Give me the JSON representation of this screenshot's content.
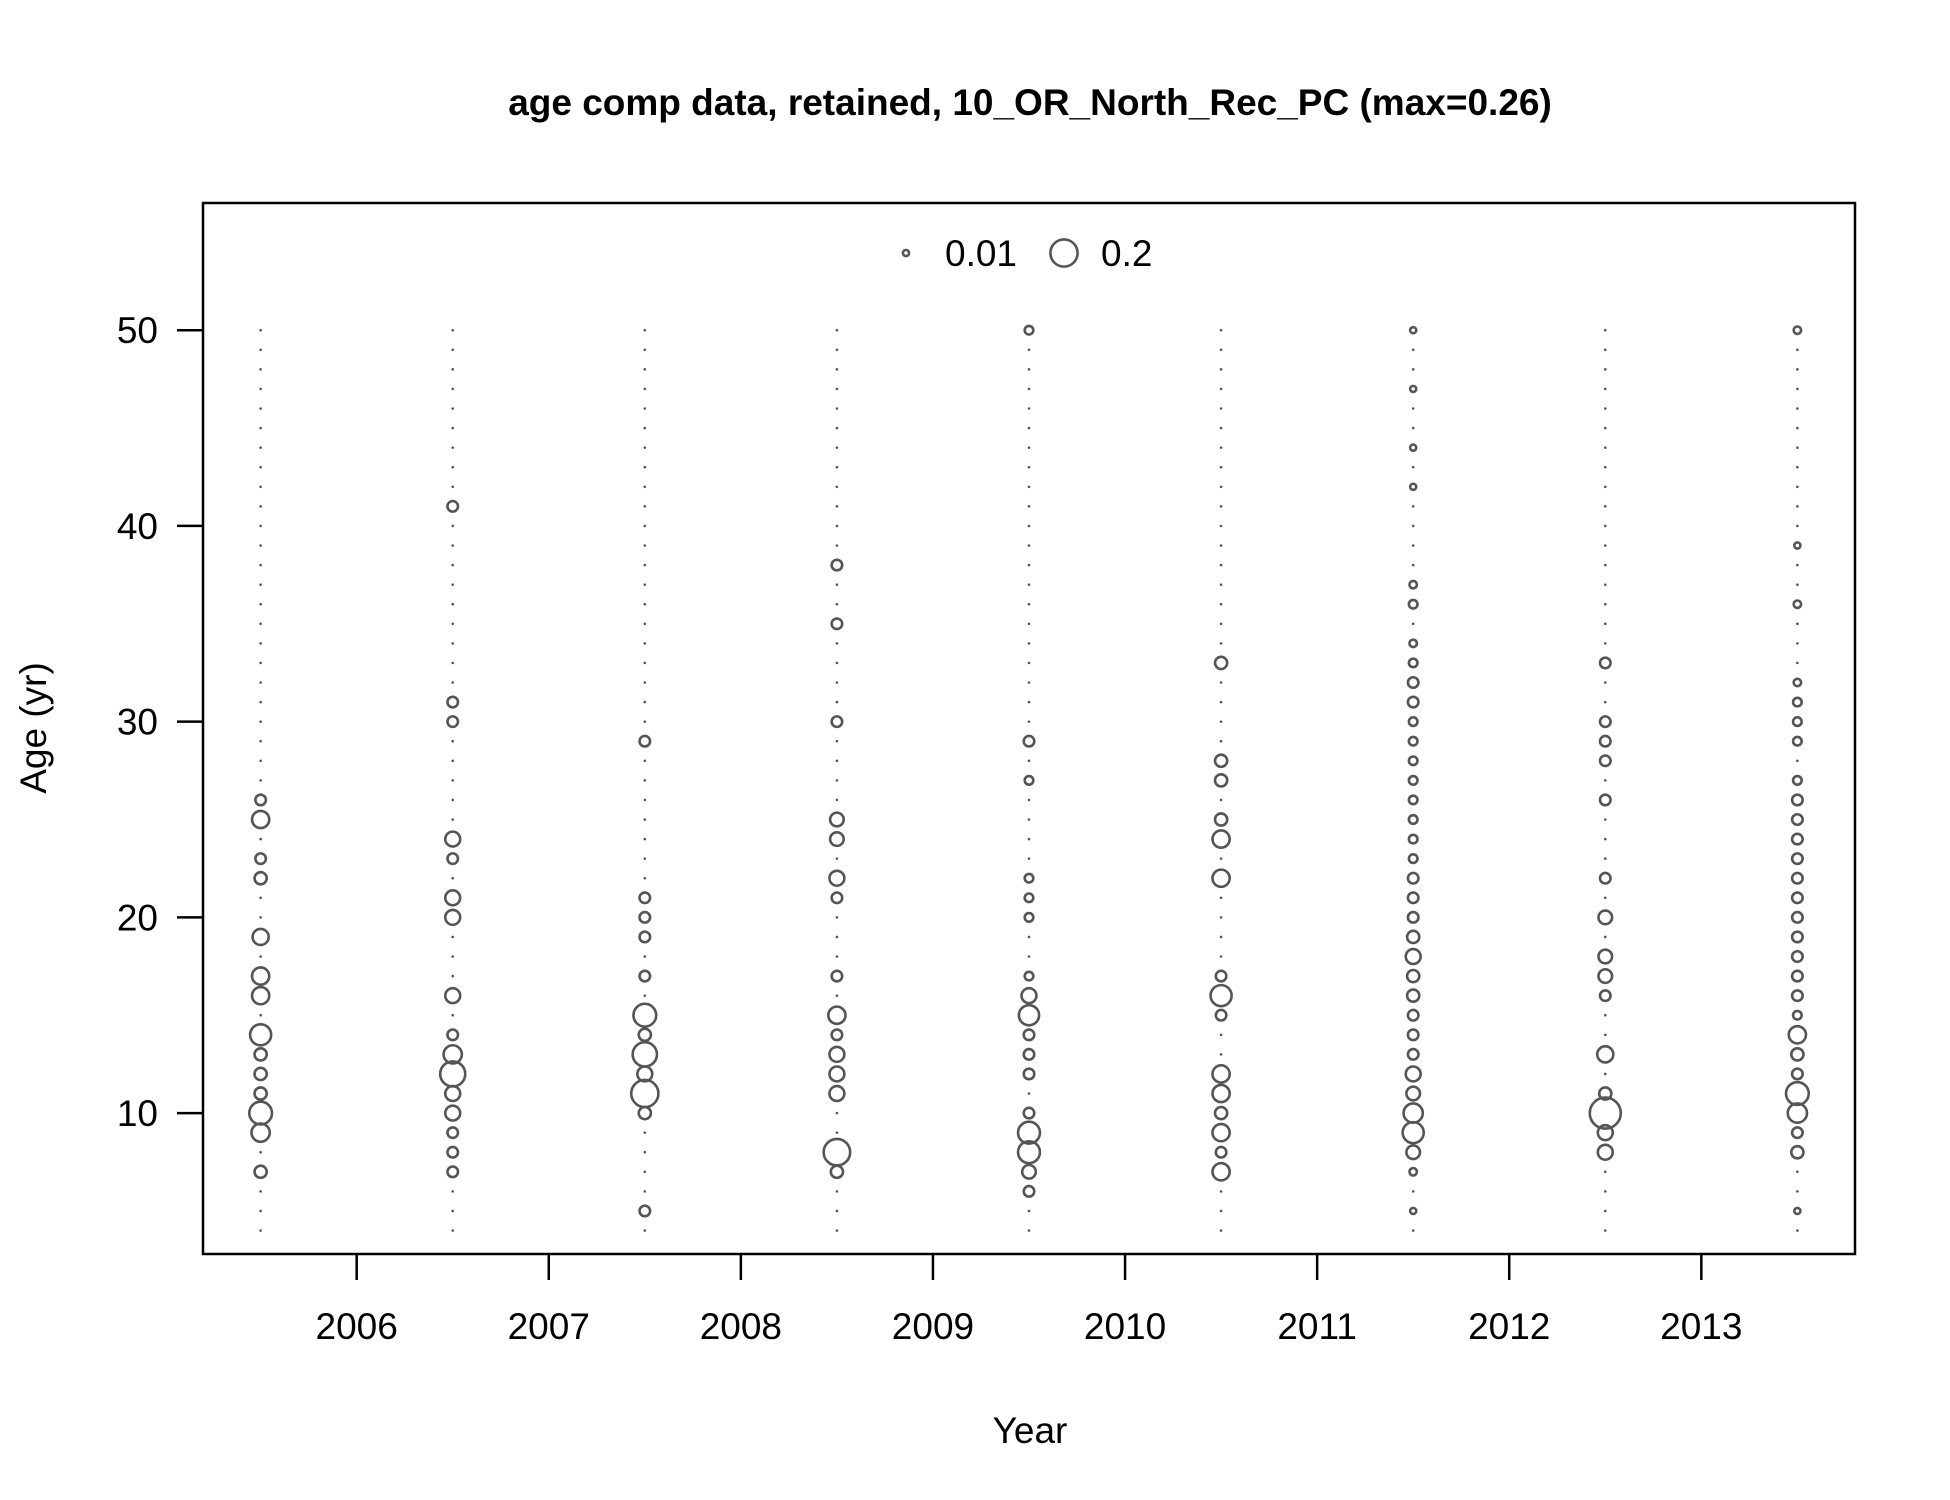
{
  "chart_data": {
    "type": "scatter",
    "title": "age comp data, retained, 10_OR_North_Rec_PC (max=0.26)",
    "xlabel": "Year",
    "ylabel": "Age (yr)",
    "xlim": [
      2005.2,
      2013.8
    ],
    "ylim": [
      2.8,
      56.5
    ],
    "x_ticks": [
      2006,
      2007,
      2008,
      2009,
      2010,
      2011,
      2012,
      2013
    ],
    "y_ticks": [
      10,
      20,
      30,
      40,
      50
    ],
    "legend": {
      "position": "top-center",
      "entries": [
        {
          "label": "0.01",
          "value": 0.01
        },
        {
          "label": "0.2",
          "value": 0.2
        }
      ]
    },
    "max_value": 0.26,
    "bubble_encoding": "area proportional to proportion",
    "age_range": [
      4,
      50
    ],
    "years": [
      {
        "year": 2005.5,
        "values": {
          "7": 0.04,
          "9": 0.09,
          "10": 0.14,
          "11": 0.04,
          "12": 0.04,
          "13": 0.04,
          "14": 0.12,
          "16": 0.08,
          "17": 0.08,
          "19": 0.07,
          "22": 0.04,
          "23": 0.03,
          "25": 0.08,
          "26": 0.03
        }
      },
      {
        "year": 2006.5,
        "values": {
          "7": 0.03,
          "8": 0.03,
          "9": 0.03,
          "10": 0.06,
          "11": 0.06,
          "12": 0.17,
          "13": 0.09,
          "14": 0.03,
          "16": 0.06,
          "20": 0.06,
          "21": 0.06,
          "23": 0.03,
          "24": 0.06,
          "30": 0.03,
          "31": 0.03,
          "41": 0.03
        }
      },
      {
        "year": 2007.5,
        "values": {
          "5": 0.03,
          "10": 0.04,
          "11": 0.2,
          "12": 0.06,
          "13": 0.16,
          "14": 0.04,
          "15": 0.14,
          "17": 0.03,
          "19": 0.03,
          "20": 0.03,
          "21": 0.03,
          "29": 0.03
        }
      },
      {
        "year": 2008.5,
        "values": {
          "7": 0.04,
          "8": 0.19,
          "11": 0.06,
          "12": 0.06,
          "13": 0.06,
          "14": 0.03,
          "15": 0.08,
          "17": 0.03,
          "21": 0.03,
          "22": 0.06,
          "24": 0.05,
          "25": 0.05,
          "30": 0.03,
          "35": 0.03,
          "38": 0.03
        }
      },
      {
        "year": 2009.5,
        "values": {
          "6": 0.03,
          "7": 0.05,
          "8": 0.13,
          "9": 0.13,
          "10": 0.03,
          "12": 0.03,
          "13": 0.03,
          "14": 0.03,
          "15": 0.11,
          "16": 0.06,
          "17": 0.02,
          "20": 0.02,
          "21": 0.02,
          "22": 0.02,
          "27": 0.02,
          "29": 0.03,
          "50": 0.02
        }
      },
      {
        "year": 2010.5,
        "values": {
          "7": 0.08,
          "8": 0.03,
          "9": 0.08,
          "10": 0.04,
          "11": 0.08,
          "12": 0.08,
          "15": 0.03,
          "16": 0.12,
          "17": 0.03,
          "22": 0.08,
          "24": 0.08,
          "25": 0.04,
          "27": 0.04,
          "28": 0.04,
          "33": 0.04
        }
      },
      {
        "year": 2011.5,
        "values": {
          "5": 0.01,
          "7": 0.015,
          "8": 0.05,
          "9": 0.12,
          "10": 0.1,
          "11": 0.05,
          "12": 0.06,
          "13": 0.03,
          "14": 0.03,
          "15": 0.03,
          "16": 0.04,
          "17": 0.04,
          "18": 0.06,
          "19": 0.04,
          "20": 0.03,
          "21": 0.03,
          "22": 0.03,
          "23": 0.02,
          "24": 0.02,
          "25": 0.02,
          "26": 0.02,
          "27": 0.02,
          "28": 0.02,
          "29": 0.02,
          "30": 0.02,
          "31": 0.03,
          "32": 0.03,
          "33": 0.02,
          "34": 0.015,
          "36": 0.02,
          "37": 0.015,
          "42": 0.01,
          "44": 0.01,
          "47": 0.01,
          "50": 0.01
        }
      },
      {
        "year": 2012.5,
        "values": {
          "8": 0.06,
          "9": 0.06,
          "10": 0.26,
          "11": 0.04,
          "13": 0.07,
          "16": 0.03,
          "17": 0.05,
          "18": 0.05,
          "20": 0.05,
          "22": 0.03,
          "26": 0.03,
          "28": 0.03,
          "29": 0.03,
          "30": 0.03,
          "33": 0.03
        }
      },
      {
        "year": 2013.5,
        "values": {
          "5": 0.01,
          "8": 0.04,
          "9": 0.03,
          "10": 0.1,
          "11": 0.14,
          "12": 0.03,
          "13": 0.04,
          "14": 0.08,
          "15": 0.02,
          "16": 0.03,
          "17": 0.03,
          "18": 0.03,
          "19": 0.03,
          "20": 0.03,
          "21": 0.03,
          "22": 0.03,
          "23": 0.03,
          "24": 0.03,
          "25": 0.03,
          "26": 0.03,
          "27": 0.02,
          "29": 0.02,
          "30": 0.02,
          "31": 0.02,
          "32": 0.015,
          "36": 0.015,
          "39": 0.01,
          "50": 0.015
        }
      }
    ]
  }
}
